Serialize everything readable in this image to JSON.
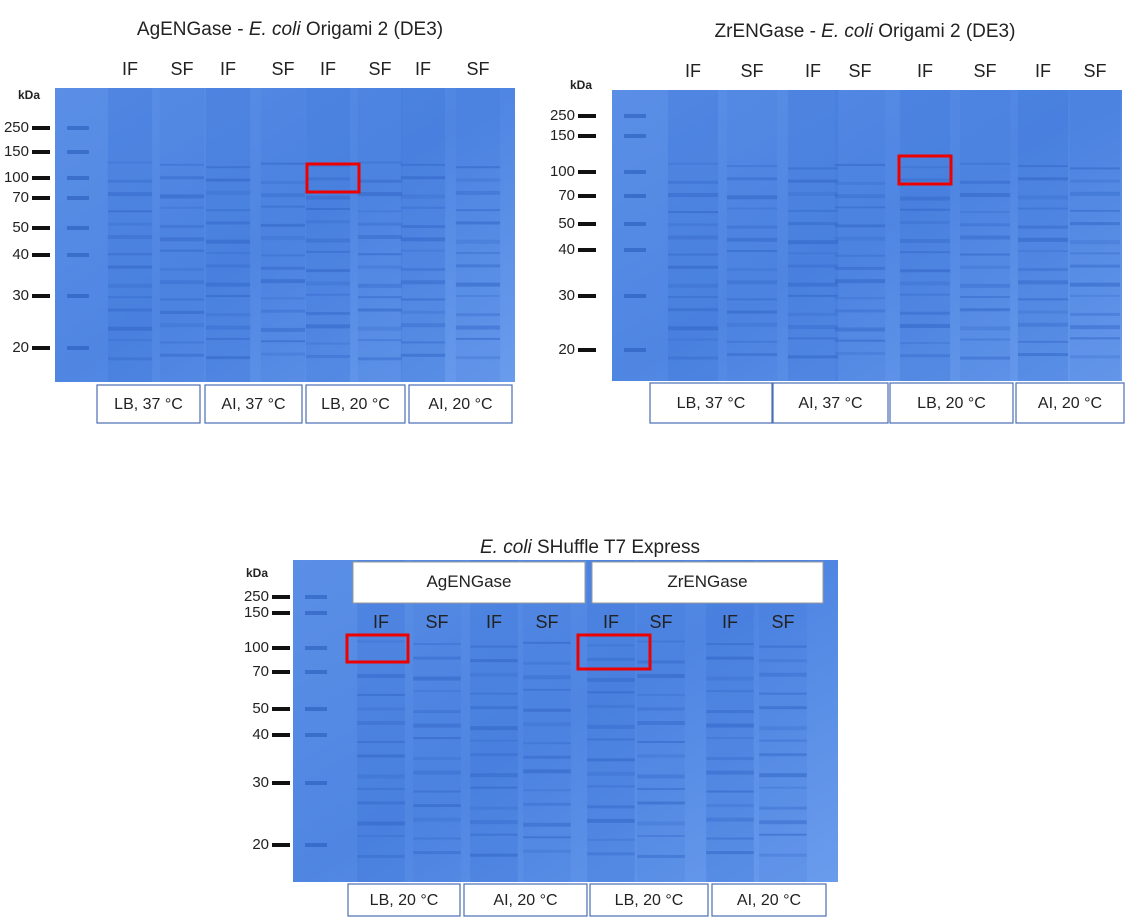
{
  "panels": [
    {
      "title": [
        "AgENGase - ",
        "E. coli",
        " Origami 2 (DE3)"
      ],
      "unit": "kDa",
      "lanes": [
        "IF",
        "SF",
        "IF",
        "SF",
        "IF",
        "SF",
        "IF",
        "SF"
      ],
      "markers": [
        250,
        150,
        100,
        70,
        50,
        40,
        30,
        20
      ],
      "conditions": [
        "LB, 37 °C",
        "AI, 37 °C",
        "LB, 20 °C",
        "AI, 20 °C"
      ]
    },
    {
      "title": [
        "ZrENGase - ",
        "E. coli",
        " Origami 2 (DE3)"
      ],
      "unit": "kDa",
      "lanes": [
        "IF",
        "SF",
        "IF",
        "SF",
        "IF",
        "SF",
        "IF",
        "SF"
      ],
      "markers": [
        250,
        150,
        100,
        70,
        50,
        40,
        30,
        20
      ],
      "conditions": [
        "LB, 37 °C",
        "AI, 37 °C",
        "LB, 20 °C",
        "AI, 20 °C"
      ]
    },
    {
      "title": [
        "E. coli",
        " SHuffle T7 Express"
      ],
      "unit": "kDa",
      "groups": [
        "AgENGase",
        "ZrENGase"
      ],
      "lanes": [
        "IF",
        "SF",
        "IF",
        "SF",
        "IF",
        "SF",
        "IF",
        "SF"
      ],
      "markers": [
        250,
        150,
        100,
        70,
        50,
        40,
        30,
        20
      ],
      "conditions": [
        "LB, 20 °C",
        "AI, 20 °C",
        "LB, 20 °C",
        "AI, 20 °C"
      ]
    }
  ]
}
